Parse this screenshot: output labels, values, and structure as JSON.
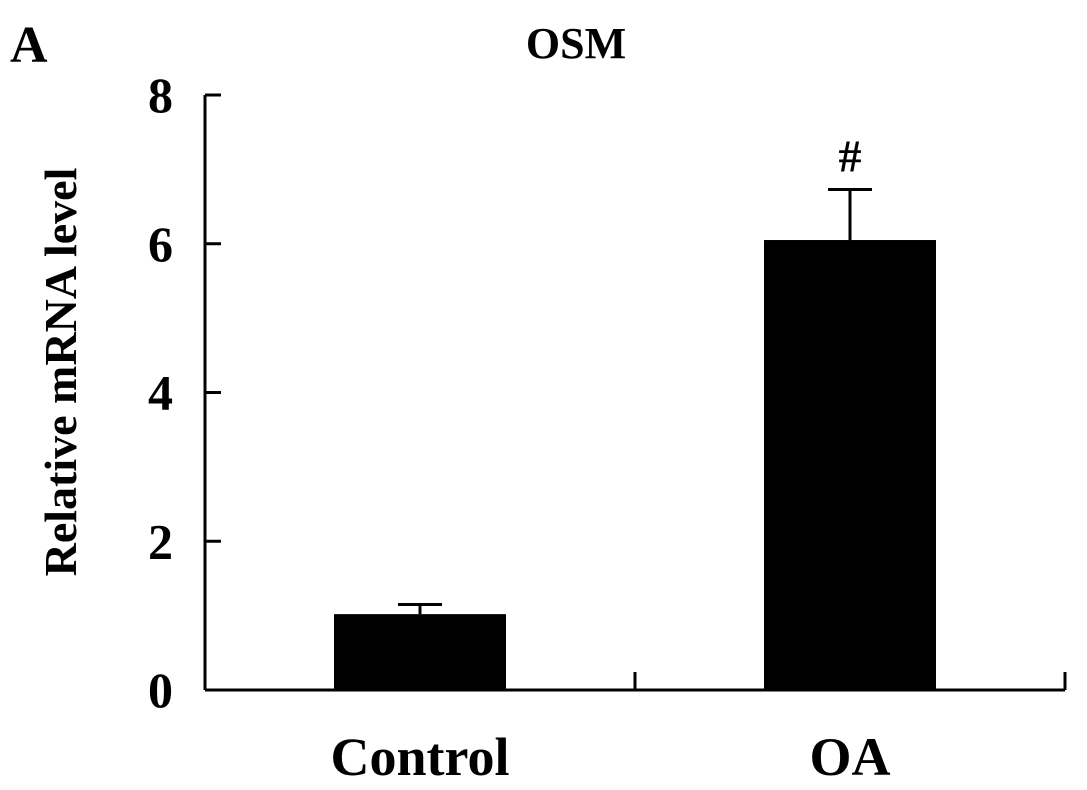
{
  "panel_label": "A",
  "chart_data": {
    "type": "bar",
    "title": "OSM",
    "xlabel": "",
    "ylabel": "Relative mRNA level",
    "categories": [
      "Control",
      "OA"
    ],
    "values": [
      1.02,
      6.05
    ],
    "errors": [
      0.13,
      0.68
    ],
    "annotations": [
      "",
      "#"
    ],
    "ylim": [
      0,
      8
    ],
    "yticks": [
      0,
      2,
      4,
      6,
      8
    ],
    "grid": false,
    "bar_color": "#000000"
  }
}
